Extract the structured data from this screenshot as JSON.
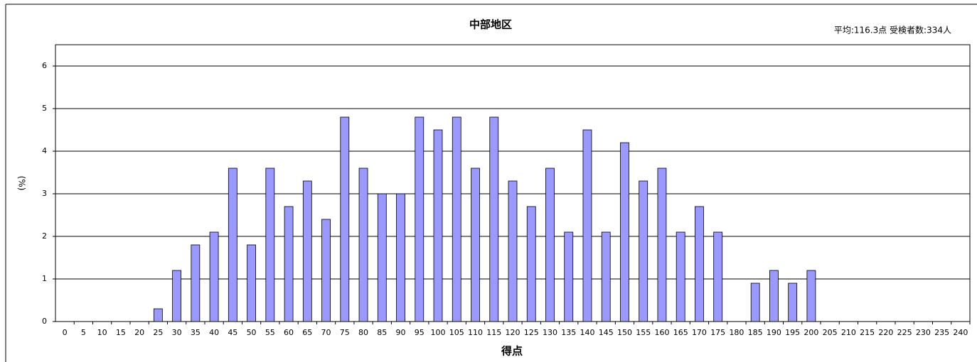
{
  "chart_data": {
    "type": "bar",
    "title": "中部地区",
    "annotation": "平均:116.3点 受検者数:334人",
    "y_label": "(%)",
    "x_label": "得点",
    "categories": [
      0,
      5,
      10,
      15,
      20,
      25,
      30,
      35,
      40,
      45,
      50,
      55,
      60,
      65,
      70,
      75,
      80,
      85,
      90,
      95,
      100,
      105,
      110,
      115,
      120,
      125,
      130,
      135,
      140,
      145,
      150,
      155,
      160,
      165,
      170,
      175,
      180,
      185,
      190,
      195,
      200,
      205,
      210,
      215,
      220,
      225,
      230,
      235,
      240
    ],
    "values": [
      0,
      0,
      0,
      0,
      0,
      0.3,
      1.2,
      1.8,
      2.1,
      3.6,
      1.8,
      3.6,
      2.7,
      3.3,
      2.4,
      4.8,
      3.6,
      3.0,
      3.0,
      4.8,
      4.5,
      4.8,
      3.6,
      4.8,
      3.3,
      2.7,
      3.6,
      2.1,
      4.5,
      2.1,
      4.2,
      3.3,
      3.6,
      2.1,
      2.7,
      2.1,
      0,
      0.9,
      1.2,
      0.9,
      1.2,
      0,
      0,
      0,
      0,
      0,
      0,
      0,
      0
    ],
    "color": "#9999ff",
    "ylim": [
      0,
      6.5
    ],
    "yticks": [
      0,
      1,
      2,
      3,
      4,
      5,
      6
    ],
    "grid": true
  }
}
